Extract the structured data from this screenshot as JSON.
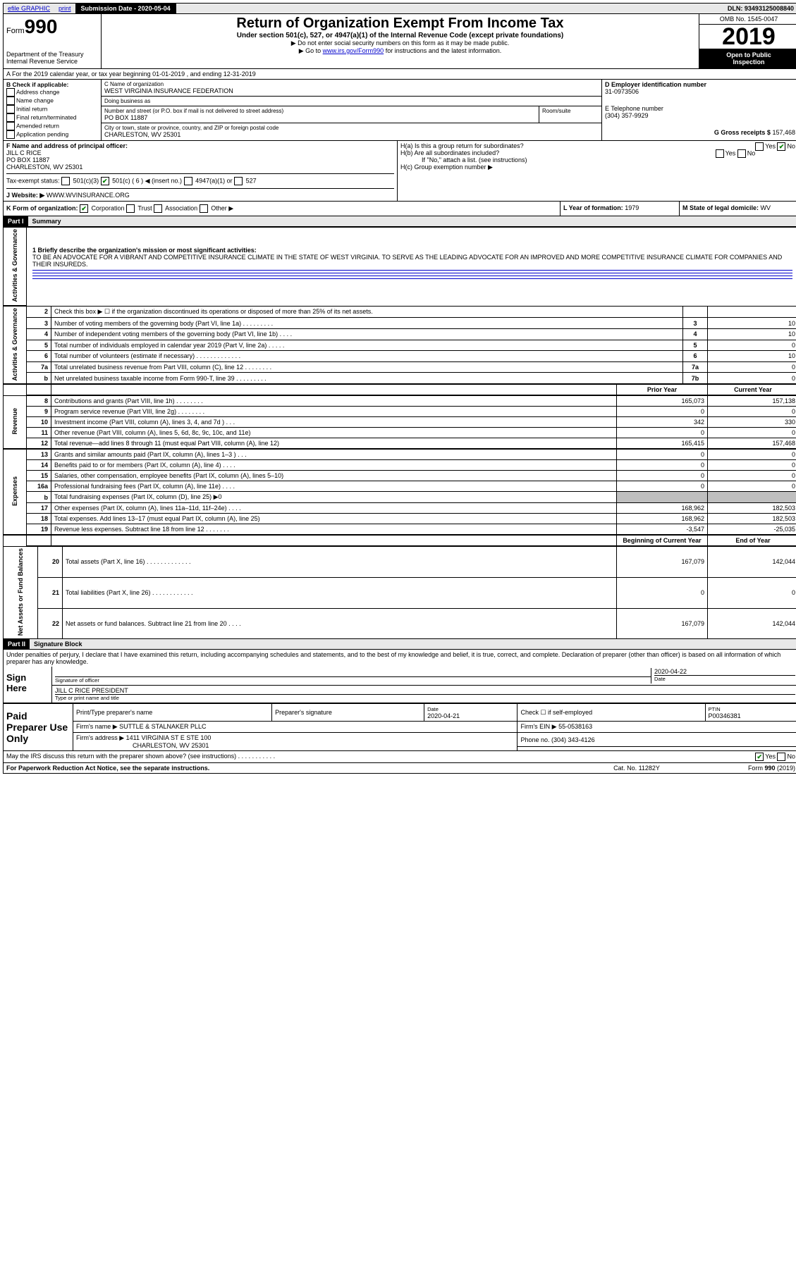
{
  "topbar": {
    "efile": "efile GRAPHIC",
    "print": "print",
    "submission_label": "Submission Date - 2020-05-04",
    "dln": "DLN: 93493125008840"
  },
  "header": {
    "form_label": "Form",
    "form_num": "990",
    "dept": "Department of the Treasury\nInternal Revenue Service",
    "title": "Return of Organization Exempt From Income Tax",
    "subtitle": "Under section 501(c), 527, or 4947(a)(1) of the Internal Revenue Code (except private foundations)",
    "warn1": "▶ Do not enter social security numbers on this form as it may be made public.",
    "warn2_pre": "▶ Go to ",
    "warn2_link": "www.irs.gov/Form990",
    "warn2_post": " for instructions and the latest information.",
    "omb": "OMB No. 1545-0047",
    "year": "2019",
    "inspect": "Open to Public\nInspection"
  },
  "lineA": "A For the 2019 calendar year, or tax year beginning 01-01-2019   , and ending 12-31-2019",
  "sectionB": {
    "hdr": "B Check if applicable:",
    "items": [
      "Address change",
      "Name change",
      "Initial return",
      "Final return/terminated",
      "Amended return",
      "Application pending"
    ]
  },
  "sectionC": {
    "name_lbl": "C Name of organization",
    "name_val": "WEST VIRGINIA INSURANCE FEDERATION",
    "dba_lbl": "Doing business as",
    "dba_val": "",
    "addr_lbl": "Number and street (or P.O. box if mail is not delivered to street address)",
    "room_lbl": "Room/suite",
    "addr_val": "PO BOX 11887",
    "city_lbl": "City or town, state or province, country, and ZIP or foreign postal code",
    "city_val": "CHARLESTON, WV  25301"
  },
  "sectionD": {
    "lbl": "D Employer identification number",
    "val": "31-0973506"
  },
  "sectionE": {
    "lbl": "E Telephone number",
    "val": "(304) 357-9929"
  },
  "sectionG": {
    "lbl": "G Gross receipts $",
    "val": "157,468"
  },
  "sectionF": {
    "lbl": "F  Name and address of principal officer:",
    "name": "JILL C RICE",
    "addr1": "PO BOX 11887",
    "addr2": "CHARLESTON, WV  25301"
  },
  "sectionH": {
    "a": "H(a)  Is this a group return for subordinates?",
    "a_yes": "Yes",
    "a_no": "No",
    "b": "H(b)  Are all subordinates included?",
    "b_yes": "Yes",
    "b_no": "No",
    "b_note": "If \"No,\" attach a list. (see instructions)",
    "c": "H(c)  Group exemption number ▶"
  },
  "taxexempt": {
    "lbl": "Tax-exempt status:",
    "c3": "501(c)(3)",
    "c": "501(c) ( 6 ) ◀ (insert no.)",
    "a1": "4947(a)(1) or",
    "527": "527"
  },
  "sectionJ": {
    "lbl": "J    Website: ▶",
    "val": "WWW.WVINSURANCE.ORG"
  },
  "sectionK": {
    "lbl": "K Form of organization:",
    "corp": "Corporation",
    "trust": "Trust",
    "assoc": "Association",
    "other": "Other ▶"
  },
  "sectionL": {
    "lbl": "L Year of formation:",
    "val": "1979"
  },
  "sectionM": {
    "lbl": "M State of legal domicile:",
    "val": "WV"
  },
  "part1": {
    "label": "Part I",
    "title": "Summary"
  },
  "mission": {
    "q": "1  Briefly describe the organization's mission or most significant activities:",
    "text": "TO BE AN ADVOCATE FOR A VIBRANT AND COMPETITIVE INSURANCE CLIMATE IN THE STATE OF WEST VIRGINIA. TO SERVE AS THE LEADING ADVOCATE FOR AN IMPROVED AND MORE COMPETITIVE INSURANCE CLIMATE FOR COMPANIES AND THEIR INSUREDS."
  },
  "side_labels": {
    "gov": "Activities & Governance",
    "rev": "Revenue",
    "exp": "Expenses",
    "net": "Net Assets or\nFund Balances"
  },
  "lines_gov": [
    {
      "n": "2",
      "d": "Check this box ▶ ☐  if the organization discontinued its operations or disposed of more than 25% of its net assets.",
      "box": "",
      "v": ""
    },
    {
      "n": "3",
      "d": "Number of voting members of the governing body (Part VI, line 1a)   .    .    .    .    .    .    .    .    .",
      "box": "3",
      "v": "10"
    },
    {
      "n": "4",
      "d": "Number of independent voting members of the governing body (Part VI, line 1b)   .    .    .    .",
      "box": "4",
      "v": "10"
    },
    {
      "n": "5",
      "d": "Total number of individuals employed in calendar year 2019 (Part V, line 2a)   .    .    .    .    .",
      "box": "5",
      "v": "0"
    },
    {
      "n": "6",
      "d": "Total number of volunteers (estimate if necessary)    .    .    .    .    .    .    .    .    .    .    .    .    .",
      "box": "6",
      "v": "10"
    },
    {
      "n": "7a",
      "d": "Total unrelated business revenue from Part VIII, column (C), line 12   .    .    .    .    .    .    .    .",
      "box": "7a",
      "v": "0"
    },
    {
      "n": "b",
      "d": "Net unrelated business taxable income from Form 990-T, line 39   .    .    .    .    .    .    .    .    .",
      "box": "7b",
      "v": "0"
    }
  ],
  "col_prior": "Prior Year",
  "col_current": "Current Year",
  "lines_rev": [
    {
      "n": "8",
      "d": "Contributions and grants (Part VIII, line 1h)   .    .    .    .    .    .    .    .",
      "p": "165,073",
      "c": "157,138"
    },
    {
      "n": "9",
      "d": "Program service revenue (Part VIII, line 2g)   .    .    .    .    .    .    .    .",
      "p": "0",
      "c": "0"
    },
    {
      "n": "10",
      "d": "Investment income (Part VIII, column (A), lines 3, 4, and 7d )   .    .    .",
      "p": "342",
      "c": "330"
    },
    {
      "n": "11",
      "d": "Other revenue (Part VIII, column (A), lines 5, 6d, 8c, 9c, 10c, and 11e)",
      "p": "0",
      "c": "0"
    },
    {
      "n": "12",
      "d": "Total revenue—add lines 8 through 11 (must equal Part VIII, column (A), line 12)",
      "p": "165,415",
      "c": "157,468"
    }
  ],
  "lines_exp": [
    {
      "n": "13",
      "d": "Grants and similar amounts paid (Part IX, column (A), lines 1–3 )   .    .    .",
      "p": "0",
      "c": "0"
    },
    {
      "n": "14",
      "d": "Benefits paid to or for members (Part IX, column (A), line 4)   .    .    .    .",
      "p": "0",
      "c": "0"
    },
    {
      "n": "15",
      "d": "Salaries, other compensation, employee benefits (Part IX, column (A), lines 5–10)",
      "p": "0",
      "c": "0"
    },
    {
      "n": "16a",
      "d": "Professional fundraising fees (Part IX, column (A), line 11e)   .    .    .    .",
      "p": "0",
      "c": "0"
    },
    {
      "n": "b",
      "d": "Total fundraising expenses (Part IX, column (D), line 25) ▶0",
      "p": "GREY",
      "c": "GREY"
    },
    {
      "n": "17",
      "d": "Other expenses (Part IX, column (A), lines 11a–11d, 11f–24e)   .    .    .    .",
      "p": "168,962",
      "c": "182,503"
    },
    {
      "n": "18",
      "d": "Total expenses. Add lines 13–17 (must equal Part IX, column (A), line 25)",
      "p": "168,962",
      "c": "182,503"
    },
    {
      "n": "19",
      "d": "Revenue less expenses. Subtract line 18 from line 12 .    .    .    .    .    .    .",
      "p": "-3,547",
      "c": "-25,035"
    }
  ],
  "col_begin": "Beginning of Current Year",
  "col_end": "End of Year",
  "lines_net": [
    {
      "n": "20",
      "d": "Total assets (Part X, line 16)  .    .    .    .    .    .    .    .    .    .    .    .    .",
      "p": "167,079",
      "c": "142,044"
    },
    {
      "n": "21",
      "d": "Total liabilities (Part X, line 26)  .    .    .    .    .    .    .    .    .    .    .    .",
      "p": "0",
      "c": "0"
    },
    {
      "n": "22",
      "d": "Net assets or fund balances. Subtract line 21 from line 20   .    .    .    .",
      "p": "167,079",
      "c": "142,044"
    }
  ],
  "part2": {
    "label": "Part II",
    "title": "Signature Block"
  },
  "sig": {
    "decl": "Under penalties of perjury, I declare that I have examined this return, including accompanying schedules and statements, and to the best of my knowledge and belief, it is true, correct, and complete. Declaration of preparer (other than officer) is based on all information of which preparer has any knowledge.",
    "sign_here": "Sign Here",
    "sig_officer": "Signature of officer",
    "date_lbl": "Date",
    "date_val": "2020-04-22",
    "name_line": "JILL C RICE PRESIDENT",
    "name_lbl": "Type or print name and title"
  },
  "prep": {
    "hdr": "Paid Preparer Use Only",
    "c1": "Print/Type preparer's name",
    "c2": "Preparer's signature",
    "c3_lbl": "Date",
    "c3_val": "2020-04-21",
    "c4_lbl": "Check ☐ if self-employed",
    "c5_lbl": "PTIN",
    "c5_val": "P00346381",
    "firm_name_lbl": "Firm's name    ▶",
    "firm_name_val": "SUTTLE & STALNAKER PLLC",
    "firm_ein_lbl": "Firm's EIN ▶",
    "firm_ein_val": "55-0538163",
    "firm_addr_lbl": "Firm's address ▶",
    "firm_addr_val1": "1411 VIRGINIA ST E STE 100",
    "firm_addr_val2": "CHARLESTON, WV  25301",
    "phone_lbl": "Phone no.",
    "phone_val": "(304) 343-4126"
  },
  "discuss": {
    "q": "May the IRS discuss this return with the preparer shown above? (see instructions)   .    .    .    .    .    .    .    .    .    .    .",
    "yes": "Yes",
    "no": "No"
  },
  "footer": {
    "a": "For Paperwork Reduction Act Notice, see the separate instructions.",
    "b": "Cat. No. 11282Y",
    "c": "Form 990 (2019)"
  }
}
